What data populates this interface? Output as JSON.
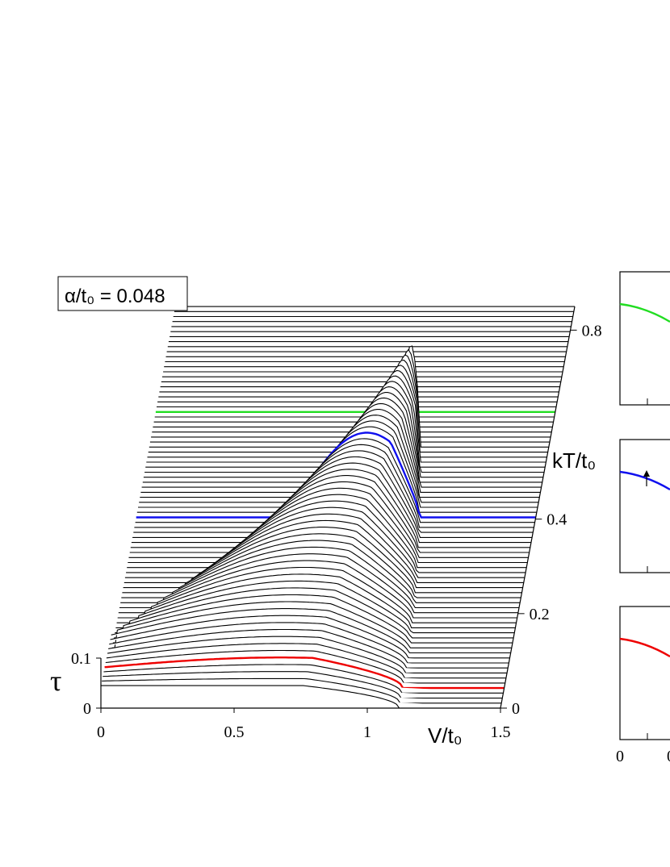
{
  "annotation": {
    "label": "α/t₀ = 0.048"
  },
  "chart_data": [
    {
      "type": "line",
      "title": "",
      "xlabel": "V/t₀",
      "ylabel": "τ",
      "zlabel": "kT/t₀",
      "annotation": "α/t₀ = 0.048",
      "xlim": [
        0,
        1.5
      ],
      "ylim": [
        0,
        0.1
      ],
      "zlim": [
        0,
        0.85
      ],
      "x_ticks": [
        "0",
        "0.5",
        "1",
        "1.5"
      ],
      "y_ticks": [
        "0",
        "0.1"
      ],
      "z_ticks": [
        "0",
        "0.2",
        "0.4",
        "0.8"
      ],
      "num_curves": 81,
      "highlighted_curves": [
        {
          "color": "#ee0000",
          "kT": 0.04
        },
        {
          "color": "#1010ee",
          "kT": 0.4
        },
        {
          "color": "#22dd22",
          "kT": 0.63
        }
      ],
      "ridge_peak": {
        "V": 1.05,
        "kT": 0.58
      }
    },
    {
      "type": "line",
      "title": "",
      "xlabel": "",
      "ylabel": "",
      "x_ticks": [
        "0",
        "0"
      ],
      "panels": [
        {
          "color": "#22dd22"
        },
        {
          "color": "#1010ee",
          "arrow": true
        },
        {
          "color": "#ee0000"
        }
      ]
    }
  ]
}
